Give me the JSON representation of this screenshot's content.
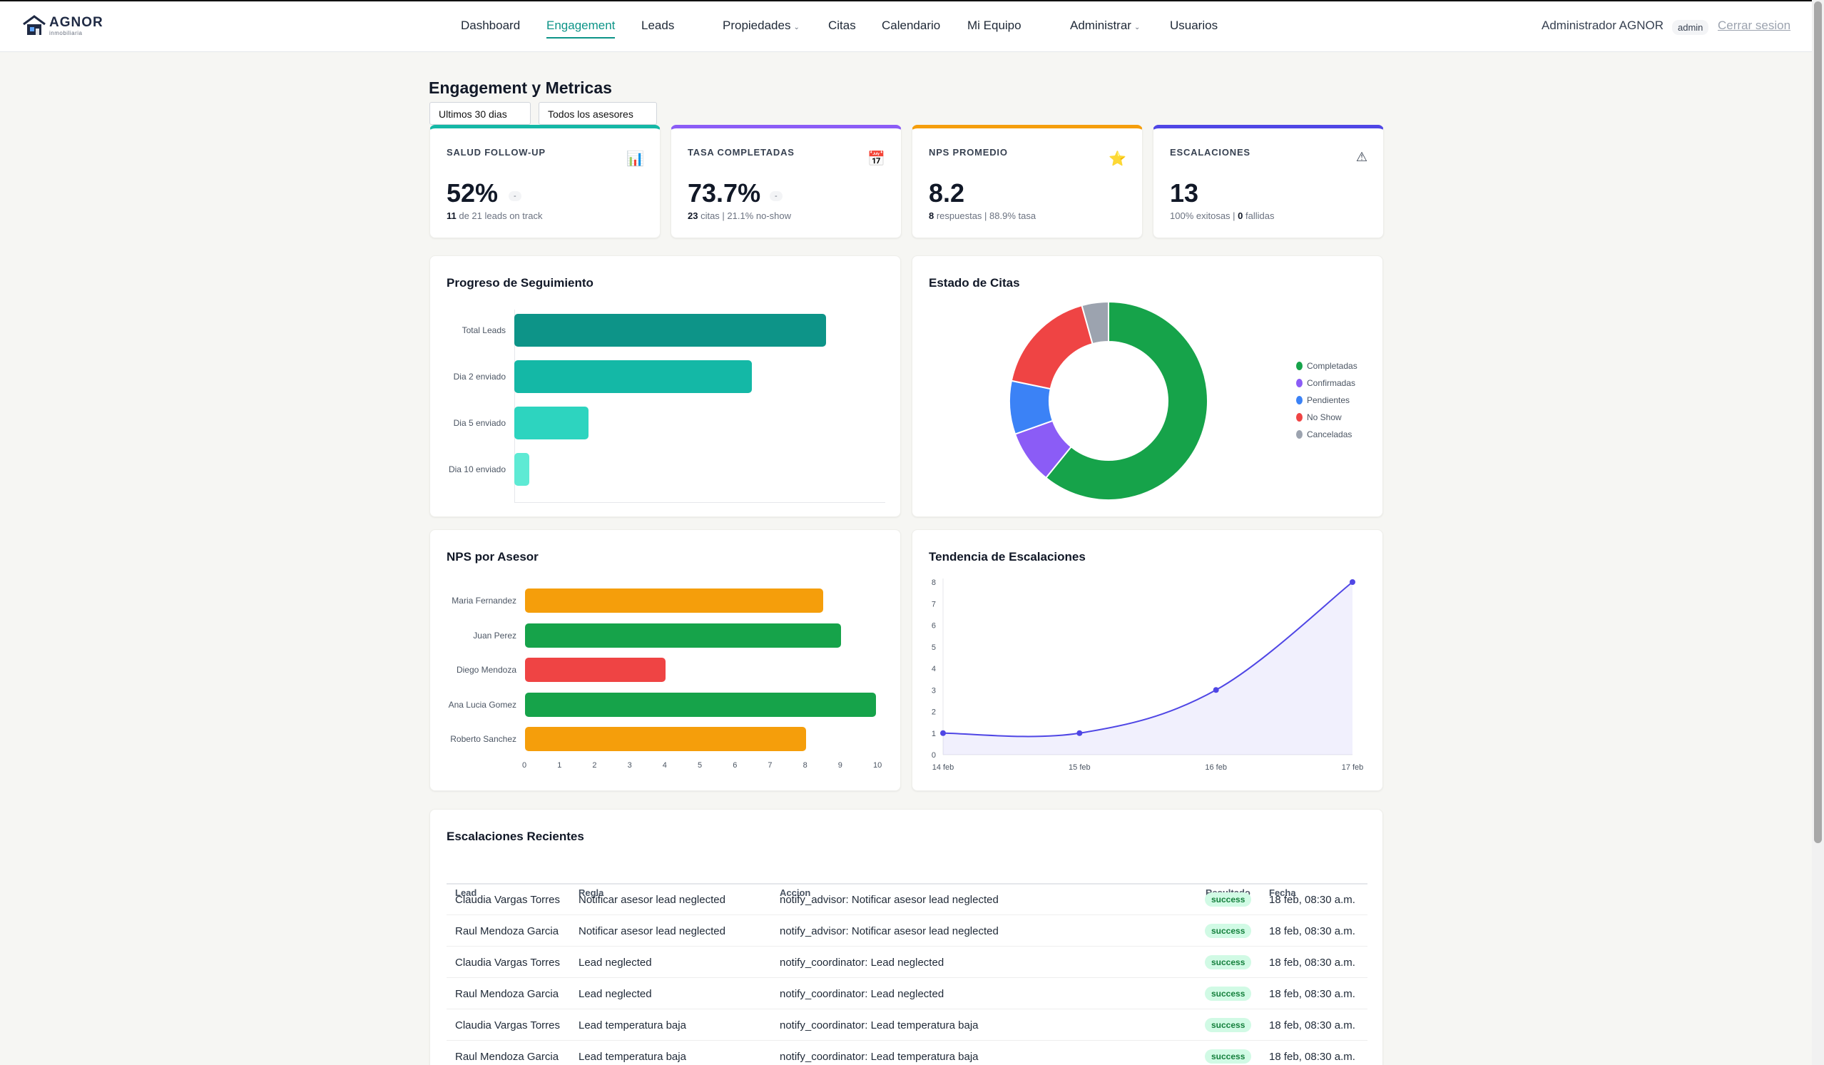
{
  "brand": {
    "name": "AGNOR",
    "subtitle": "inmobiliaria"
  },
  "nav": {
    "items": [
      {
        "label": "Dashboard",
        "active": false,
        "dropdown": false
      },
      {
        "label": "Engagement",
        "active": true,
        "dropdown": false
      },
      {
        "label": "Leads",
        "active": false,
        "dropdown": false
      },
      {
        "label": "Propiedades",
        "active": false,
        "dropdown": true
      },
      {
        "label": "Citas",
        "active": false,
        "dropdown": false
      },
      {
        "label": "Calendario",
        "active": false,
        "dropdown": false
      },
      {
        "label": "Mi Equipo",
        "active": false,
        "dropdown": false
      },
      {
        "label": "Administrar",
        "active": false,
        "dropdown": true
      },
      {
        "label": "Usuarios",
        "active": false,
        "dropdown": false
      }
    ],
    "user": "Administrador AGNOR",
    "role": "admin",
    "logout": "Cerrar sesion"
  },
  "page": {
    "title": "Engagement y Metricas",
    "filters": {
      "period": "Ultimos 30 dias",
      "advisor": "Todos los asesores"
    }
  },
  "kpis": [
    {
      "label": "SALUD FOLLOW-UP",
      "icon": "chart-icon",
      "value": "52%",
      "delta": "-",
      "sub_strong": "11",
      "sub": " de 21 leads on track",
      "color": "#14b8a6"
    },
    {
      "label": "TASA COMPLETADAS",
      "icon": "calendar-icon",
      "value": "73.7%",
      "delta": "-",
      "sub_strong": "23",
      "sub": " citas | 21.1% no-show",
      "color": "#8b5cf6"
    },
    {
      "label": "NPS PROMEDIO",
      "icon": "star-icon",
      "value": "8.2",
      "delta": "",
      "sub_strong": "8",
      "sub": " respuestas | 88.9% tasa",
      "color": "#f59e0b"
    },
    {
      "label": "ESCALACIONES",
      "icon": "warning-icon",
      "value": "13",
      "delta": "",
      "sub_pre": "100% exitosas | ",
      "sub_strong": "0",
      "sub": " fallidas",
      "color": "#4f46e5"
    }
  ],
  "colors": {
    "accent": "#0d9488",
    "teal_dark": "#0d9488",
    "teal": "#14b8a6",
    "teal_light": "#2dd4bf",
    "teal_lighter": "#5eead4",
    "green": "#16a34a",
    "orange": "#f59e0b",
    "red": "#ef4444",
    "purple": "#8b5cf6",
    "blue": "#3b82f6",
    "gray": "#9ca3af",
    "indigo": "#4f46e5"
  },
  "panels": {
    "progreso": "Progreso de Seguimiento",
    "citas": "Estado de Citas",
    "nps": "NPS por Asesor",
    "tendencia": "Tendencia de Escalaciones",
    "recientes": "Escalaciones Recientes"
  },
  "chart_data": [
    {
      "type": "bar",
      "orientation": "horizontal",
      "title": "Progreso de Seguimiento",
      "categories": [
        "Total Leads",
        "Dia 2 enviado",
        "Dia 5 enviado",
        "Dia 10 enviado"
      ],
      "values": [
        21,
        16,
        5,
        1
      ],
      "colors": [
        "#0d9488",
        "#14b8a6",
        "#2dd4bf",
        "#5eead4"
      ],
      "xlim": [
        0,
        25
      ],
      "grid": false
    },
    {
      "type": "pie",
      "title": "Estado de Citas",
      "labels": [
        "Completadas",
        "Confirmadas",
        "Pendientes",
        "No Show",
        "Canceladas"
      ],
      "values": [
        14,
        2,
        2,
        4,
        1
      ],
      "colors": [
        "#16a34a",
        "#8b5cf6",
        "#3b82f6",
        "#ef4444",
        "#9ca3af"
      ],
      "legend": "right"
    },
    {
      "type": "bar",
      "orientation": "horizontal",
      "title": "NPS por Asesor",
      "categories": [
        "Maria Fernandez",
        "Juan Perez",
        "Diego Mendoza",
        "Ana Lucia Gomez",
        "Roberto Sanchez"
      ],
      "values": [
        8.5,
        9,
        4,
        10,
        8
      ],
      "colors": [
        "#f59e0b",
        "#16a34a",
        "#ef4444",
        "#16a34a",
        "#f59e0b"
      ],
      "xlim": [
        0,
        10
      ],
      "xticks": [
        0,
        1,
        2,
        3,
        4,
        5,
        6,
        7,
        8,
        9,
        10
      ]
    },
    {
      "type": "area",
      "title": "Tendencia de Escalaciones",
      "x": [
        "14 feb",
        "15 feb",
        "16 feb",
        "17 feb"
      ],
      "values": [
        1,
        1,
        3,
        8
      ],
      "ylim": [
        0,
        8
      ],
      "yticks": [
        0,
        1,
        2,
        3,
        4,
        5,
        6,
        7,
        8
      ],
      "color": "#4f46e5",
      "grid": false
    }
  ],
  "table": {
    "headers": [
      "Lead",
      "Regla",
      "Accion",
      "Resultado",
      "Fecha"
    ],
    "rows": [
      [
        "Claudia Vargas Torres",
        "Notificar asesor lead neglected",
        "notify_advisor: Notificar asesor lead neglected",
        "success",
        "18 feb, 08:30 a.m."
      ],
      [
        "Raul Mendoza Garcia",
        "Notificar asesor lead neglected",
        "notify_advisor: Notificar asesor lead neglected",
        "success",
        "18 feb, 08:30 a.m."
      ],
      [
        "Claudia Vargas Torres",
        "Lead neglected",
        "notify_coordinator: Lead neglected",
        "success",
        "18 feb, 08:30 a.m."
      ],
      [
        "Raul Mendoza Garcia",
        "Lead neglected",
        "notify_coordinator: Lead neglected",
        "success",
        "18 feb, 08:30 a.m."
      ],
      [
        "Claudia Vargas Torres",
        "Lead temperatura baja",
        "notify_coordinator: Lead temperatura baja",
        "success",
        "18 feb, 08:30 a.m."
      ],
      [
        "Raul Mendoza Garcia",
        "Lead temperatura baja",
        "notify_coordinator: Lead temperatura baja",
        "success",
        "18 feb, 08:30 a.m."
      ]
    ]
  }
}
